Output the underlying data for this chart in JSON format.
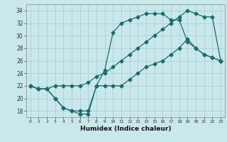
{
  "xlabel": "Humidex (Indice chaleur)",
  "xlim": [
    -0.5,
    23.5
  ],
  "ylim": [
    17,
    35
  ],
  "yticks": [
    18,
    20,
    22,
    24,
    26,
    28,
    30,
    32,
    34
  ],
  "xticks": [
    0,
    1,
    2,
    3,
    4,
    5,
    6,
    7,
    8,
    9,
    10,
    11,
    12,
    13,
    14,
    15,
    16,
    17,
    18,
    19,
    20,
    21,
    22,
    23
  ],
  "bg_color": "#c8e8ec",
  "line_color": "#1a6b6b",
  "grid_color": "#a8ccd4",
  "line1_x": [
    0,
    1,
    2,
    3,
    4,
    5,
    6,
    7,
    8,
    9,
    10,
    11,
    12,
    13,
    14,
    15,
    16,
    17,
    18,
    19,
    20,
    21,
    22,
    23
  ],
  "line1_y": [
    22,
    21.5,
    21.5,
    22,
    22,
    22,
    22,
    22.5,
    23.5,
    24,
    25,
    26,
    27,
    28,
    29,
    30,
    31,
    32,
    33,
    34,
    33.5,
    33,
    33,
    26
  ],
  "line2_x": [
    0,
    1,
    2,
    3,
    4,
    5,
    6,
    7,
    8,
    9,
    10,
    11,
    12,
    13,
    14,
    15,
    16,
    17,
    18,
    19,
    20,
    21,
    22,
    23
  ],
  "line2_y": [
    22,
    21.5,
    21.5,
    20,
    18.5,
    18,
    18,
    18,
    22,
    24.5,
    30.5,
    32,
    32.5,
    33,
    33.5,
    33.5,
    33.5,
    32.5,
    32.5,
    29,
    28,
    27,
    26.5,
    26
  ],
  "line3_x": [
    0,
    1,
    2,
    3,
    4,
    5,
    6,
    7,
    8,
    9,
    10,
    11,
    12,
    13,
    14,
    15,
    16,
    17,
    18,
    19,
    20,
    21,
    22,
    23
  ],
  "line3_y": [
    22,
    21.5,
    21.5,
    20,
    18.5,
    18,
    17.5,
    17.5,
    22,
    22,
    22,
    22,
    23,
    24,
    25,
    25.5,
    26,
    27,
    28,
    29.5,
    28,
    27,
    26.5,
    26
  ]
}
